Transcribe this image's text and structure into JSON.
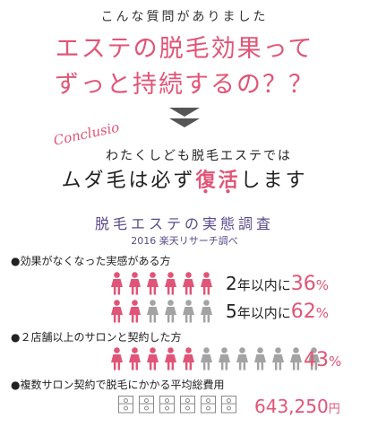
{
  "question": {
    "intro": "こんな質問がありました",
    "line1": "エステの脱毛効果って",
    "line2": "ずっと持続するの？？"
  },
  "conclusion": {
    "label": "Conclusio",
    "line1": "わたくしども脱毛エステでは",
    "line2_pre": "ムダ毛は必ず",
    "line2_em1": "復",
    "line2_em2": "活",
    "line2_post": "します"
  },
  "survey": {
    "title": "脱毛エステの実態調査",
    "subtitle": "2016 楽天リサーチ調べ"
  },
  "items": [
    {
      "bullet": "●効果がなくなった実感がある方",
      "stats": [
        {
          "years": "2",
          "suffix": "年以内に",
          "value": "36",
          "unit": "%"
        },
        {
          "years": "5",
          "suffix": "年以内に",
          "value": "62",
          "unit": "%"
        }
      ],
      "rows": [
        {
          "filled": 6,
          "total": 6
        },
        {
          "filled": 2,
          "total": 6
        }
      ]
    },
    {
      "bullet": "●２店舗以上のサロンと契約した方",
      "value": "43",
      "unit": "%",
      "rows": [
        {
          "filled": 5,
          "total": 12
        }
      ]
    },
    {
      "bullet": "●複数サロン契約で脱毛にかかる平均総費用",
      "value": "643,250",
      "unit": "円",
      "bills": 6
    }
  ],
  "colors": {
    "pink": "#e05577",
    "gray": "#a3a3a3",
    "purple": "#5a4a8a"
  }
}
